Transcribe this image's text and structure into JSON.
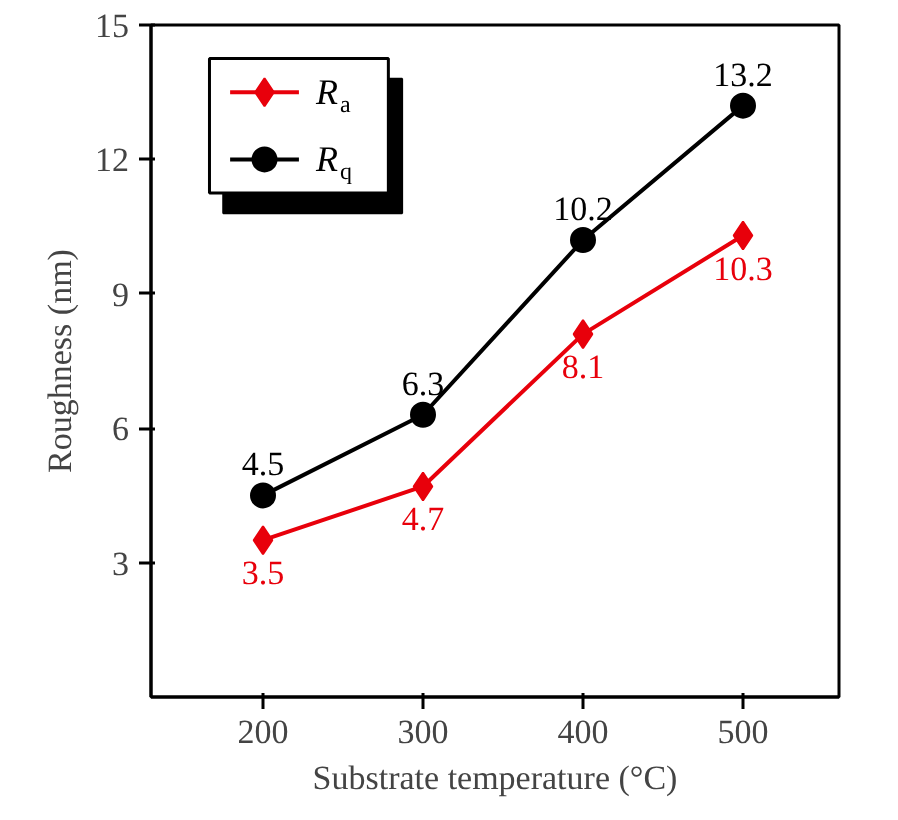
{
  "chart_data": {
    "type": "line",
    "xlabel": "Substrate temperature (°C)",
    "ylabel": "Roughness (nm)",
    "x": [
      200,
      300,
      400,
      500
    ],
    "series": [
      {
        "name": "R$_{a}$",
        "color": "#e8000b",
        "values": [
          3.5,
          4.7,
          8.1,
          10.3
        ],
        "marker": "diamond"
      },
      {
        "name": "R$_{q}$",
        "color": "#000000",
        "values": [
          4.5,
          6.3,
          10.2,
          13.2
        ],
        "marker": "circle"
      }
    ],
    "xlim": [
      130,
      560
    ],
    "ylim": [
      0,
      15
    ],
    "xticks": [
      200,
      300,
      400,
      500
    ],
    "yticks": [
      3,
      6,
      9,
      12,
      15
    ],
    "data_labels": true,
    "legend": "top left",
    "grid": false,
    "line_style": "solid"
  }
}
